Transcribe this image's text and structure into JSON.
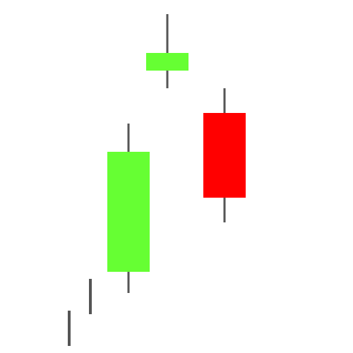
{
  "chart_data": {
    "type": "candlestick",
    "ylim": [
      0,
      100
    ],
    "grid": false,
    "legend": "none",
    "colors": {
      "up": "#66ff33",
      "down": "#ff0000",
      "wick": "#555555",
      "background": "#ffffff"
    },
    "candles": [
      {
        "open": 6,
        "high": 12,
        "low": 2,
        "close": 6
      },
      {
        "open": 10,
        "high": 21,
        "low": 11,
        "close": 10
      },
      {
        "open": 23,
        "high": 65,
        "low": 17,
        "close": 57
      },
      {
        "open": 80,
        "high": 96,
        "low": 75,
        "close": 85
      },
      {
        "open": 68,
        "high": 75,
        "low": 37,
        "close": 44
      }
    ]
  }
}
